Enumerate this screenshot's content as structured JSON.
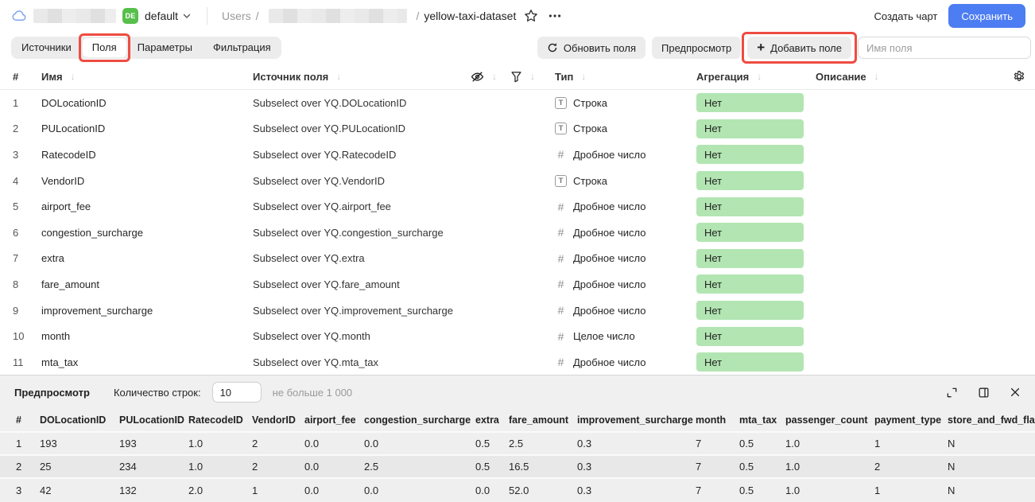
{
  "colors": {
    "accent_blue": "#4d7df2",
    "badge_green": "#57bf4c",
    "pill_green": "#b2e5b2",
    "annotation_red": "#ee4c42"
  },
  "header": {
    "tenant": {
      "badge": "DE",
      "name": "default"
    },
    "breadcrumb": {
      "root": "Users",
      "separator": "/",
      "current": "yellow-taxi-dataset"
    },
    "actions": {
      "create_chart": "Создать чарт",
      "save": "Сохранить"
    }
  },
  "toolbar": {
    "tabs": [
      {
        "id": "sources",
        "label": "Источники",
        "active": false,
        "annotated": false
      },
      {
        "id": "fields",
        "label": "Поля",
        "active": true,
        "annotated": true
      },
      {
        "id": "parameters",
        "label": "Параметры",
        "active": false,
        "annotated": false
      },
      {
        "id": "filtering",
        "label": "Фильтрация",
        "active": false,
        "annotated": false
      }
    ],
    "refresh_fields": "Обновить поля",
    "preview": "Предпросмотр",
    "add_field": "Добавить поле",
    "field_name_placeholder": "Имя поля"
  },
  "fields_table": {
    "columns": {
      "index": "#",
      "name": "Имя",
      "source": "Источник поля",
      "type": "Тип",
      "aggregation": "Агрегация",
      "description": "Описание"
    },
    "rows": [
      {
        "n": 1,
        "name": "DOLocationID",
        "source": "Subselect over YQ.DOLocationID",
        "type": "Строка",
        "type_kind": "string",
        "aggregation": "Нет"
      },
      {
        "n": 2,
        "name": "PULocationID",
        "source": "Subselect over YQ.PULocationID",
        "type": "Строка",
        "type_kind": "string",
        "aggregation": "Нет"
      },
      {
        "n": 3,
        "name": "RatecodeID",
        "source": "Subselect over YQ.RatecodeID",
        "type": "Дробное число",
        "type_kind": "number",
        "aggregation": "Нет"
      },
      {
        "n": 4,
        "name": "VendorID",
        "source": "Subselect over YQ.VendorID",
        "type": "Строка",
        "type_kind": "string",
        "aggregation": "Нет"
      },
      {
        "n": 5,
        "name": "airport_fee",
        "source": "Subselect over YQ.airport_fee",
        "type": "Дробное число",
        "type_kind": "number",
        "aggregation": "Нет"
      },
      {
        "n": 6,
        "name": "congestion_surcharge",
        "source": "Subselect over YQ.congestion_surcharge",
        "type": "Дробное число",
        "type_kind": "number",
        "aggregation": "Нет"
      },
      {
        "n": 7,
        "name": "extra",
        "source": "Subselect over YQ.extra",
        "type": "Дробное число",
        "type_kind": "number",
        "aggregation": "Нет"
      },
      {
        "n": 8,
        "name": "fare_amount",
        "source": "Subselect over YQ.fare_amount",
        "type": "Дробное число",
        "type_kind": "number",
        "aggregation": "Нет"
      },
      {
        "n": 9,
        "name": "improvement_surcharge",
        "source": "Subselect over YQ.improvement_surcharge",
        "type": "Дробное число",
        "type_kind": "number",
        "aggregation": "Нет"
      },
      {
        "n": 10,
        "name": "month",
        "source": "Subselect over YQ.month",
        "type": "Целое число",
        "type_kind": "number",
        "aggregation": "Нет"
      },
      {
        "n": 11,
        "name": "mta_tax",
        "source": "Subselect over YQ.mta_tax",
        "type": "Дробное число",
        "type_kind": "number",
        "aggregation": "Нет"
      }
    ]
  },
  "preview": {
    "title": "Предпросмотр",
    "row_count_label": "Количество строк:",
    "row_count_value": "10",
    "limit_hint": "не больше 1 000",
    "columns": [
      "#",
      "DOLocationID",
      "PULocationID",
      "RatecodeID",
      "VendorID",
      "airport_fee",
      "congestion_surcharge",
      "extra",
      "fare_amount",
      "improvement_surcharge",
      "month",
      "mta_tax",
      "passenger_count",
      "payment_type",
      "store_and_fwd_flag"
    ],
    "rows": [
      [
        "1",
        "193",
        "193",
        "1.0",
        "2",
        "0.0",
        "0.0",
        "0.5",
        "2.5",
        "0.3",
        "7",
        "0.5",
        "1.0",
        "1",
        "N"
      ],
      [
        "2",
        "25",
        "234",
        "1.0",
        "2",
        "0.0",
        "2.5",
        "0.5",
        "16.5",
        "0.3",
        "7",
        "0.5",
        "1.0",
        "2",
        "N"
      ],
      [
        "3",
        "42",
        "132",
        "2.0",
        "1",
        "0.0",
        "0.0",
        "0.0",
        "52.0",
        "0.3",
        "7",
        "0.5",
        "1.0",
        "1",
        "N"
      ]
    ]
  }
}
